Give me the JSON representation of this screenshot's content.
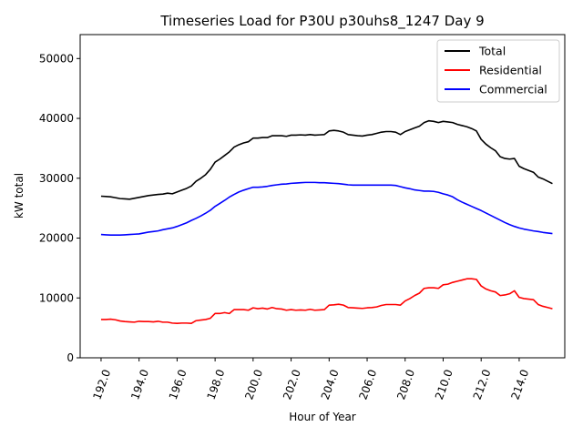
{
  "chart_data": {
    "type": "line",
    "title": "Timeseries Load for P30U p30uhs8_1247  Day 9",
    "xlabel": "Hour of Year",
    "ylabel": "kW total",
    "xlim": [
      190.9,
      216.4
    ],
    "ylim": [
      0,
      54000
    ],
    "x_ticks": [
      "192.0",
      "194.0",
      "196.0",
      "198.0",
      "200.0",
      "202.0",
      "204.0",
      "206.0",
      "208.0",
      "210.0",
      "212.0",
      "214.0"
    ],
    "x_tick_values": [
      192,
      194,
      196,
      198,
      200,
      202,
      204,
      206,
      208,
      210,
      212,
      214
    ],
    "y_ticks": [
      "0",
      "10000",
      "20000",
      "30000",
      "40000",
      "50000"
    ],
    "y_tick_values": [
      0,
      10000,
      20000,
      30000,
      40000,
      50000
    ],
    "grid": false,
    "legend_position": "top-right",
    "x": [
      192.0,
      192.25,
      192.5,
      192.75,
      193.0,
      193.25,
      193.5,
      193.75,
      194.0,
      194.25,
      194.5,
      194.75,
      195.0,
      195.25,
      195.5,
      195.75,
      196.0,
      196.25,
      196.5,
      196.75,
      197.0,
      197.25,
      197.5,
      197.75,
      198.0,
      198.25,
      198.5,
      198.75,
      199.0,
      199.25,
      199.5,
      199.75,
      200.0,
      200.25,
      200.5,
      200.75,
      201.0,
      201.25,
      201.5,
      201.75,
      202.0,
      202.25,
      202.5,
      202.75,
      203.0,
      203.25,
      203.5,
      203.75,
      204.0,
      204.25,
      204.5,
      204.75,
      205.0,
      205.25,
      205.5,
      205.75,
      206.0,
      206.25,
      206.5,
      206.75,
      207.0,
      207.25,
      207.5,
      207.75,
      208.0,
      208.25,
      208.5,
      208.75,
      209.0,
      209.25,
      209.5,
      209.75,
      210.0,
      210.25,
      210.5,
      210.75,
      211.0,
      211.25,
      211.5,
      211.75,
      212.0,
      212.25,
      212.5,
      212.75,
      213.0,
      213.25,
      213.5,
      213.75,
      214.0,
      214.25,
      214.5,
      214.75,
      215.0,
      215.25,
      215.5,
      215.75
    ],
    "series": [
      {
        "name": "Total",
        "color": "#000000",
        "values": [
          27000,
          26950,
          26900,
          26750,
          26600,
          26550,
          26500,
          26650,
          26800,
          26950,
          27100,
          27200,
          27300,
          27350,
          27500,
          27400,
          27700,
          28000,
          28300,
          28700,
          29500,
          30000,
          30600,
          31500,
          32700,
          33200,
          33800,
          34400,
          35200,
          35600,
          35900,
          36100,
          36700,
          36700,
          36800,
          36800,
          37100,
          37100,
          37100,
          37000,
          37200,
          37200,
          37250,
          37200,
          37300,
          37200,
          37250,
          37300,
          37900,
          38000,
          37900,
          37700,
          37300,
          37200,
          37100,
          37050,
          37200,
          37300,
          37500,
          37700,
          37800,
          37800,
          37700,
          37300,
          37800,
          38100,
          38400,
          38700,
          39300,
          39600,
          39500,
          39300,
          39500,
          39400,
          39300,
          39000,
          38800,
          38600,
          38300,
          37900,
          36500,
          35700,
          35100,
          34600,
          33600,
          33300,
          33200,
          33300,
          32000,
          31600,
          31300,
          31000,
          30200,
          29900,
          29500,
          29100
        ]
      },
      {
        "name": "Residential",
        "color": "#ff0000",
        "values": [
          6400,
          6400,
          6450,
          6350,
          6150,
          6050,
          6000,
          5950,
          6100,
          6050,
          6050,
          6000,
          6100,
          5950,
          5950,
          5800,
          5750,
          5800,
          5800,
          5750,
          6200,
          6300,
          6400,
          6600,
          7400,
          7400,
          7550,
          7400,
          8050,
          8050,
          8050,
          7950,
          8350,
          8200,
          8300,
          8150,
          8400,
          8200,
          8150,
          7950,
          8050,
          7950,
          8000,
          7950,
          8100,
          7950,
          8000,
          8050,
          8800,
          8850,
          8950,
          8800,
          8400,
          8350,
          8300,
          8250,
          8350,
          8400,
          8500,
          8750,
          8900,
          8900,
          8900,
          8800,
          9500,
          9900,
          10400,
          10800,
          11600,
          11700,
          11700,
          11600,
          12200,
          12300,
          12600,
          12800,
          13000,
          13200,
          13200,
          13100,
          12000,
          11500,
          11200,
          11000,
          10400,
          10500,
          10700,
          11200,
          10100,
          9900,
          9800,
          9700,
          8900,
          8600,
          8400,
          8200
        ]
      },
      {
        "name": "Commercial",
        "color": "#0000ff",
        "values": [
          20600,
          20550,
          20500,
          20500,
          20500,
          20550,
          20600,
          20650,
          20700,
          20850,
          21000,
          21100,
          21200,
          21400,
          21550,
          21700,
          21950,
          22250,
          22550,
          22950,
          23300,
          23700,
          24150,
          24650,
          25300,
          25800,
          26300,
          26850,
          27300,
          27700,
          28000,
          28250,
          28500,
          28500,
          28550,
          28650,
          28800,
          28900,
          29000,
          29050,
          29150,
          29200,
          29250,
          29300,
          29300,
          29300,
          29250,
          29250,
          29200,
          29150,
          29100,
          29000,
          28900,
          28850,
          28850,
          28850,
          28850,
          28850,
          28850,
          28850,
          28850,
          28850,
          28800,
          28600,
          28400,
          28250,
          28050,
          27950,
          27850,
          27850,
          27800,
          27650,
          27400,
          27200,
          26900,
          26400,
          26000,
          25650,
          25300,
          24950,
          24600,
          24200,
          23800,
          23400,
          23000,
          22600,
          22250,
          21950,
          21700,
          21500,
          21350,
          21200,
          21100,
          20950,
          20850,
          20750
        ]
      }
    ]
  }
}
